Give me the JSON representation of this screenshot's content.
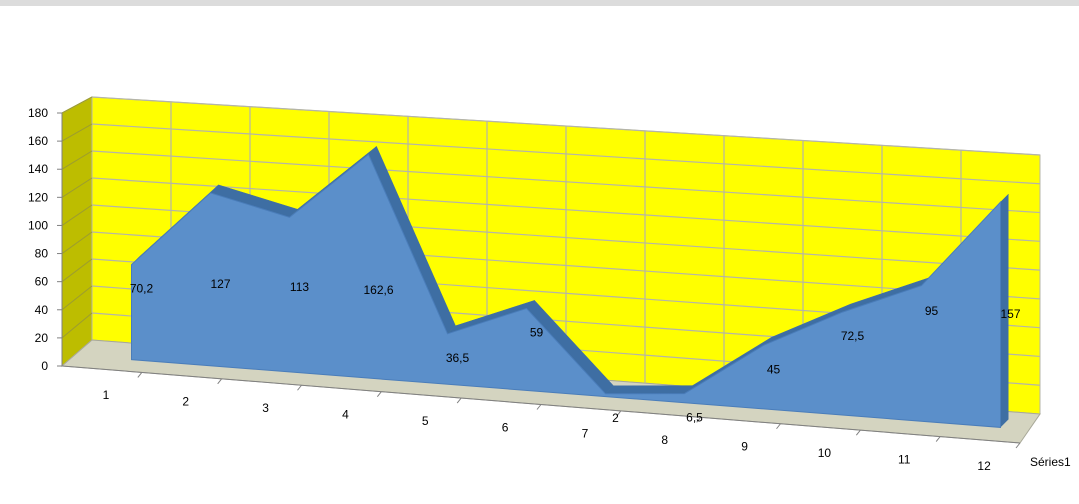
{
  "chart_data": {
    "type": "area",
    "view": "3d",
    "categories": [
      "1",
      "2",
      "3",
      "4",
      "5",
      "6",
      "7",
      "8",
      "9",
      "10",
      "11",
      "12"
    ],
    "series": [
      {
        "name": "Séries1",
        "values": [
          70.2,
          127,
          113,
          162.6,
          36.5,
          59,
          2,
          6.5,
          45,
          72.5,
          95,
          157
        ]
      }
    ],
    "data_labels": [
      "70,2",
      "127",
      "113",
      "162,6",
      "36,5",
      "59",
      "2",
      "6,5",
      "45",
      "72,5",
      "95",
      "157"
    ],
    "y_ticks": [
      "0",
      "20",
      "40",
      "60",
      "80",
      "100",
      "120",
      "140",
      "160",
      "180"
    ],
    "ylim": [
      0,
      180
    ],
    "grid": true,
    "colors": {
      "wall": "#ffff00",
      "side_wall": "#bdbd00",
      "floor": "#d4d4c0",
      "area": "#5b8fca",
      "area_edge": "#3e6ea3",
      "grid": "#b5b5a8"
    }
  }
}
